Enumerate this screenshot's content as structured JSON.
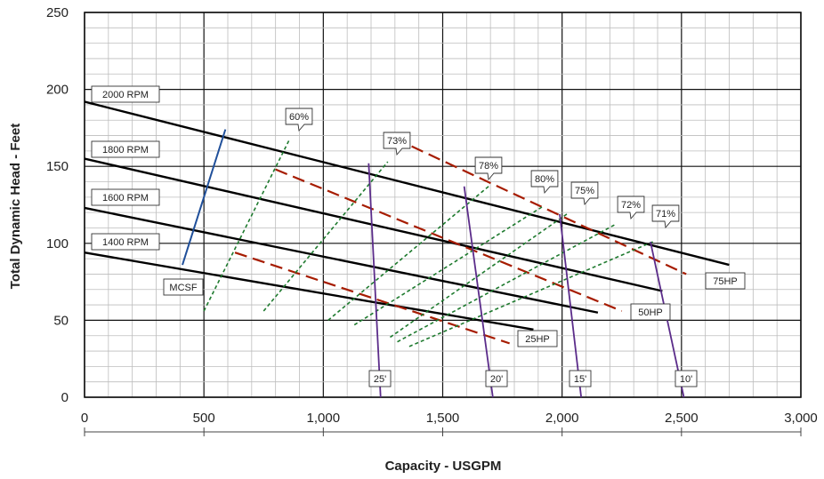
{
  "chart_data": {
    "type": "line",
    "xlabel": "Capacity - USGPM",
    "ylabel": "Total Dynamic Head - Feet",
    "xlim": [
      0,
      3000
    ],
    "ylim": [
      0,
      250
    ],
    "x_ticks": [
      "0",
      "500",
      "1,000",
      "1,500",
      "2,000",
      "2,500",
      "3,000"
    ],
    "y_ticks": [
      "0",
      "50",
      "100",
      "150",
      "200",
      "250"
    ],
    "grid": true,
    "colors": {
      "rpm": "#000000",
      "hp": "#a61c00",
      "eff": "#1e7a2e",
      "npsh": "#5b2c8a",
      "mcsf": "#1f4f9a"
    },
    "rpm_curves": [
      {
        "name": "2000 RPM",
        "points": [
          [
            0,
            192
          ],
          [
            2700,
            86
          ]
        ]
      },
      {
        "name": "1800 RPM",
        "points": [
          [
            0,
            155
          ],
          [
            2420,
            69
          ]
        ]
      },
      {
        "name": "1600 RPM",
        "points": [
          [
            0,
            123
          ],
          [
            2150,
            55
          ]
        ]
      },
      {
        "name": "1400 RPM",
        "points": [
          [
            0,
            94
          ],
          [
            1880,
            44
          ]
        ]
      }
    ],
    "hp_lines": [
      {
        "name": "75HP",
        "points": [
          [
            1370,
            163
          ],
          [
            2520,
            80
          ]
        ]
      },
      {
        "name": "50HP",
        "points": [
          [
            800,
            148
          ],
          [
            2250,
            56
          ]
        ]
      },
      {
        "name": "25HP",
        "points": [
          [
            630,
            94
          ],
          [
            1780,
            35
          ]
        ]
      }
    ],
    "efficiency_lines": [
      {
        "name": "60%",
        "points": [
          [
            500,
            56
          ],
          [
            860,
            168
          ]
        ]
      },
      {
        "name": "73%",
        "points": [
          [
            750,
            56
          ],
          [
            1270,
            153
          ]
        ]
      },
      {
        "name": "78%",
        "points": [
          [
            1020,
            50
          ],
          [
            1700,
            138
          ]
        ]
      },
      {
        "name": "80%",
        "points": [
          [
            1130,
            47
          ],
          [
            1920,
            124
          ]
        ]
      },
      {
        "name": "75%",
        "points": [
          [
            1280,
            39
          ],
          [
            2020,
            119
          ]
        ]
      },
      {
        "name": "72%",
        "points": [
          [
            1310,
            36
          ],
          [
            2220,
            112
          ]
        ]
      },
      {
        "name": "71%",
        "points": [
          [
            1360,
            33
          ],
          [
            2380,
            101
          ]
        ]
      }
    ],
    "npsh_curves": [
      {
        "name": "25'",
        "points": [
          [
            1190,
            152
          ],
          [
            1240,
            0
          ]
        ]
      },
      {
        "name": "20'",
        "points": [
          [
            1590,
            137
          ],
          [
            1710,
            0
          ]
        ]
      },
      {
        "name": "15'",
        "points": [
          [
            1990,
            119
          ],
          [
            2080,
            0
          ]
        ]
      },
      {
        "name": "10'",
        "points": [
          [
            2370,
            101
          ],
          [
            2510,
            0
          ]
        ]
      }
    ],
    "mcsf": {
      "name": "MCSF",
      "points": [
        [
          410,
          86
        ],
        [
          590,
          174
        ]
      ]
    }
  }
}
